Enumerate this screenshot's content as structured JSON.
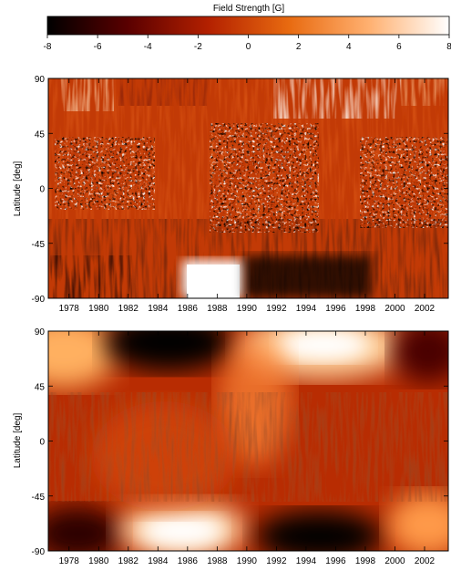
{
  "chart_data": [
    {
      "type": "heatmap",
      "title": "Field Strength [G]",
      "xlabel": "",
      "ylabel": "Latitude [deg]",
      "colorbar": {
        "label": "Field Strength [G]",
        "range": [
          -8,
          8
        ],
        "ticks": [
          -8,
          -6,
          -4,
          -2,
          0,
          2,
          4,
          6,
          8
        ],
        "colors": [
          "#000000",
          "#5a0000",
          "#b32000",
          "#e86a10",
          "#ffb070",
          "#ffffff"
        ]
      },
      "xlim": [
        1976.6,
        2003.6
      ],
      "ylim": [
        -90,
        90
      ],
      "xticks": [
        1978,
        1980,
        1982,
        1984,
        1986,
        1988,
        1990,
        1992,
        1994,
        1996,
        1998,
        2000,
        2002
      ],
      "yticks": [
        90,
        45,
        0,
        -45,
        -90
      ]
    },
    {
      "type": "heatmap",
      "title": "",
      "xlabel": "",
      "ylabel": "Latitude [deg]",
      "xlim": [
        1976.6,
        2003.6
      ],
      "ylim": [
        -90,
        90
      ],
      "xticks": [
        1978,
        1980,
        1982,
        1984,
        1986,
        1988,
        1990,
        1992,
        1994,
        1996,
        1998,
        2000,
        2002
      ],
      "yticks": [
        90,
        45,
        0,
        -45,
        -90
      ]
    }
  ]
}
